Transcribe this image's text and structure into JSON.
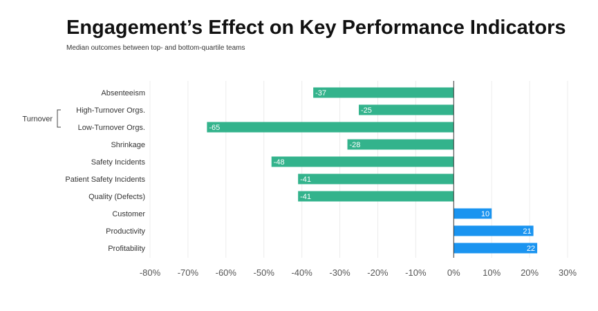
{
  "title": "Engagement’s Effect on Key Performance Indicators",
  "subtitle": "Median outcomes between top- and bottom-quartile teams",
  "chart_data": {
    "type": "bar",
    "orientation": "horizontal",
    "title": "Engagement’s Effect on Key Performance Indicators",
    "subtitle": "Median outcomes between top- and bottom-quartile teams",
    "categories": [
      "Absenteeism",
      "High-Turnover Orgs.",
      "Low-Turnover Orgs.",
      "Shrinkage",
      "Safety Incidents",
      "Patient Safety Incidents",
      "Quality (Defects)",
      "Customer",
      "Productivity",
      "Profitability"
    ],
    "values": [
      -37,
      -25,
      -65,
      -28,
      -48,
      -41,
      -41,
      10,
      21,
      22
    ],
    "data_labels": [
      "-37",
      "-25",
      "-65",
      "-28",
      "-48",
      "-41",
      "-41",
      "10",
      "21",
      "22"
    ],
    "groups": [
      {
        "label": "Turnover",
        "members": [
          "High-Turnover Orgs.",
          "Low-Turnover Orgs."
        ]
      }
    ],
    "xlim": [
      -80,
      30
    ],
    "xticks": [
      -80,
      -70,
      -60,
      -50,
      -40,
      -30,
      -20,
      -10,
      0,
      10,
      20,
      30
    ],
    "xtick_labels": [
      "-80%",
      "-70%",
      "-60%",
      "-50%",
      "-40%",
      "-30%",
      "-20%",
      "-10%",
      "0%",
      "10%",
      "20%",
      "30%"
    ],
    "grid": "vertical",
    "colors": {
      "negative": "#33b38c",
      "positive": "#1a94f0",
      "grid": "#ececec",
      "zero_line": "#333333"
    }
  }
}
